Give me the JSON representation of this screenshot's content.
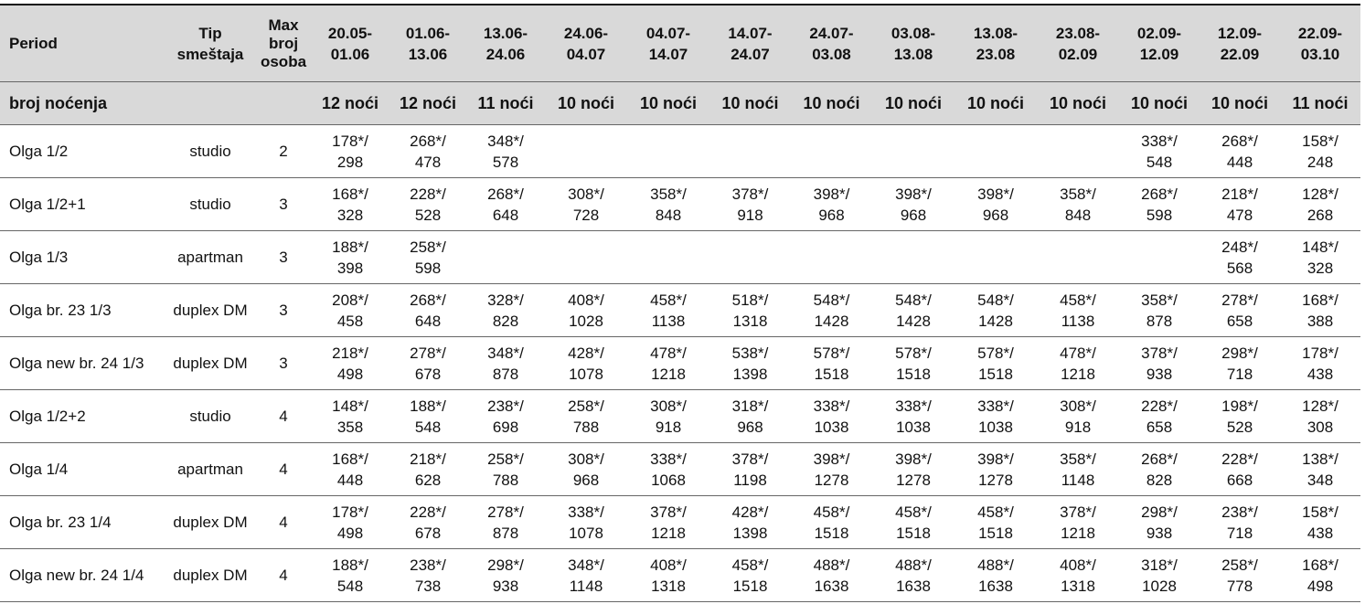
{
  "table": {
    "header": {
      "period": "Period",
      "type": "Tip smeštaja",
      "max": "Max broj osoba",
      "dates": [
        {
          "from": "20.05-",
          "to": "01.06"
        },
        {
          "from": "01.06-",
          "to": "13.06"
        },
        {
          "from": "13.06-",
          "to": "24.06"
        },
        {
          "from": "24.06-",
          "to": "04.07"
        },
        {
          "from": "04.07-",
          "to": "14.07"
        },
        {
          "from": "14.07-",
          "to": "24.07"
        },
        {
          "from": "24.07-",
          "to": "03.08"
        },
        {
          "from": "03.08-",
          "to": "13.08"
        },
        {
          "from": "13.08-",
          "to": "23.08"
        },
        {
          "from": "23.08-",
          "to": "02.09"
        },
        {
          "from": "02.09-",
          "to": "12.09"
        },
        {
          "from": "12.09-",
          "to": "22.09"
        },
        {
          "from": "22.09-",
          "to": "03.10"
        }
      ]
    },
    "nights": {
      "label": "broj noćenja",
      "values": [
        "12 noći",
        "12 noći",
        "11 noći",
        "10 noći",
        "10 noći",
        "10 noći",
        "10 noći",
        "10 noći",
        "10 noći",
        "10 noći",
        "10 noći",
        "10 noći",
        "11 noći"
      ]
    },
    "rows": [
      {
        "name": "Olga 1/2",
        "type": "studio",
        "max": 2,
        "prices": [
          [
            "178*/",
            "298"
          ],
          [
            "268*/",
            "478"
          ],
          [
            "348*/",
            "578"
          ],
          null,
          null,
          null,
          null,
          null,
          null,
          null,
          [
            "338*/",
            "548"
          ],
          [
            "268*/",
            "448"
          ],
          [
            "158*/",
            "248"
          ]
        ]
      },
      {
        "name": "Olga 1/2+1",
        "type": "studio",
        "max": 3,
        "prices": [
          [
            "168*/",
            "328"
          ],
          [
            "228*/",
            "528"
          ],
          [
            "268*/",
            "648"
          ],
          [
            "308*/",
            "728"
          ],
          [
            "358*/",
            "848"
          ],
          [
            "378*/",
            "918"
          ],
          [
            "398*/",
            "968"
          ],
          [
            "398*/",
            "968"
          ],
          [
            "398*/",
            "968"
          ],
          [
            "358*/",
            "848"
          ],
          [
            "268*/",
            "598"
          ],
          [
            "218*/",
            "478"
          ],
          [
            "128*/",
            "268"
          ]
        ]
      },
      {
        "name": "Olga 1/3",
        "type": "apartman",
        "max": 3,
        "prices": [
          [
            "188*/",
            "398"
          ],
          [
            "258*/",
            "598"
          ],
          null,
          null,
          null,
          null,
          null,
          null,
          null,
          null,
          null,
          [
            "248*/",
            "568"
          ],
          [
            "148*/",
            "328"
          ]
        ]
      },
      {
        "name": "Olga br. 23 1/3",
        "type": "duplex DM",
        "max": 3,
        "prices": [
          [
            "208*/",
            "458"
          ],
          [
            "268*/",
            "648"
          ],
          [
            "328*/",
            "828"
          ],
          [
            "408*/",
            "1028"
          ],
          [
            "458*/",
            "1138"
          ],
          [
            "518*/",
            "1318"
          ],
          [
            "548*/",
            "1428"
          ],
          [
            "548*/",
            "1428"
          ],
          [
            "548*/",
            "1428"
          ],
          [
            "458*/",
            "1138"
          ],
          [
            "358*/",
            "878"
          ],
          [
            "278*/",
            "658"
          ],
          [
            "168*/",
            "388"
          ]
        ]
      },
      {
        "name": "Olga new br. 24 1/3",
        "type": "duplex DM",
        "max": 3,
        "prices": [
          [
            "218*/",
            "498"
          ],
          [
            "278*/",
            "678"
          ],
          [
            "348*/",
            "878"
          ],
          [
            "428*/",
            "1078"
          ],
          [
            "478*/",
            "1218"
          ],
          [
            "538*/",
            "1398"
          ],
          [
            "578*/",
            "1518"
          ],
          [
            "578*/",
            "1518"
          ],
          [
            "578*/",
            "1518"
          ],
          [
            "478*/",
            "1218"
          ],
          [
            "378*/",
            "938"
          ],
          [
            "298*/",
            "718"
          ],
          [
            "178*/",
            "438"
          ]
        ]
      },
      {
        "name": "Olga 1/2+2",
        "type": "studio",
        "max": 4,
        "prices": [
          [
            "148*/",
            "358"
          ],
          [
            "188*/",
            "548"
          ],
          [
            "238*/",
            "698"
          ],
          [
            "258*/",
            "788"
          ],
          [
            "308*/",
            "918"
          ],
          [
            "318*/",
            "968"
          ],
          [
            "338*/",
            "1038"
          ],
          [
            "338*/",
            "1038"
          ],
          [
            "338*/",
            "1038"
          ],
          [
            "308*/",
            "918"
          ],
          [
            "228*/",
            "658"
          ],
          [
            "198*/",
            "528"
          ],
          [
            "128*/",
            "308"
          ]
        ]
      },
      {
        "name": "Olga 1/4",
        "type": "apartman",
        "max": 4,
        "prices": [
          [
            "168*/",
            "448"
          ],
          [
            "218*/",
            "628"
          ],
          [
            "258*/",
            "788"
          ],
          [
            "308*/",
            "968"
          ],
          [
            "338*/",
            "1068"
          ],
          [
            "378*/",
            "1198"
          ],
          [
            "398*/",
            "1278"
          ],
          [
            "398*/",
            "1278"
          ],
          [
            "398*/",
            "1278"
          ],
          [
            "358*/",
            "1148"
          ],
          [
            "268*/",
            "828"
          ],
          [
            "228*/",
            "668"
          ],
          [
            "138*/",
            "348"
          ]
        ]
      },
      {
        "name": "Olga br. 23 1/4",
        "type": "duplex DM",
        "max": 4,
        "prices": [
          [
            "178*/",
            "498"
          ],
          [
            "228*/",
            "678"
          ],
          [
            "278*/",
            "878"
          ],
          [
            "338*/",
            "1078"
          ],
          [
            "378*/",
            "1218"
          ],
          [
            "428*/",
            "1398"
          ],
          [
            "458*/",
            "1518"
          ],
          [
            "458*/",
            "1518"
          ],
          [
            "458*/",
            "1518"
          ],
          [
            "378*/",
            "1218"
          ],
          [
            "298*/",
            "938"
          ],
          [
            "238*/",
            "718"
          ],
          [
            "158*/",
            "438"
          ]
        ]
      },
      {
        "name": "Olga new br. 24 1/4",
        "type": "duplex DM",
        "max": 4,
        "prices": [
          [
            "188*/",
            "548"
          ],
          [
            "238*/",
            "738"
          ],
          [
            "298*/",
            "938"
          ],
          [
            "348*/",
            "1148"
          ],
          [
            "408*/",
            "1318"
          ],
          [
            "458*/",
            "1518"
          ],
          [
            "488*/",
            "1638"
          ],
          [
            "488*/",
            "1638"
          ],
          [
            "488*/",
            "1638"
          ],
          [
            "408*/",
            "1318"
          ],
          [
            "318*/",
            "1028"
          ],
          [
            "258*/",
            "778"
          ],
          [
            "168*/",
            "498"
          ]
        ]
      }
    ]
  }
}
